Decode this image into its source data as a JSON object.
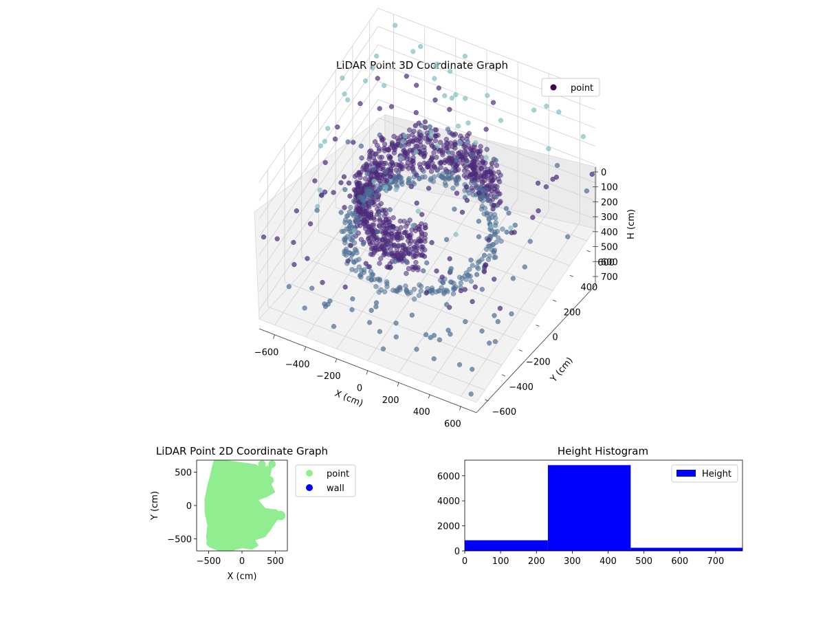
{
  "chart_data": [
    {
      "type": "scatter3d",
      "title": "LiDAR Point 3D Coordinate Graph",
      "xlabel": "X (cm)",
      "ylabel": "Y (cm)",
      "zlabel": "H (cm)",
      "xticks": [
        "−600",
        "−400",
        "−200",
        "0",
        "200",
        "400",
        "600"
      ],
      "yticks": [
        "−600",
        "−400",
        "−200",
        "0",
        "200",
        "400",
        "600"
      ],
      "zticks": [
        "0",
        "100",
        "200",
        "300",
        "400",
        "500",
        "600",
        "700"
      ],
      "xlim": [
        -700,
        700
      ],
      "ylim": [
        -700,
        700
      ],
      "zlim": [
        0,
        750
      ],
      "zaxis_inverted": true,
      "grid": true,
      "legend": {
        "position": "top-right",
        "entries": [
          "point"
        ]
      },
      "colormap": "viridis",
      "series": [
        {
          "name": "point",
          "color": "#440154",
          "structure": "partial cylindrical wall around origin, radius ~250-450 cm, heights 230-460 cm, plus scattered points",
          "points_sample": [
            [
              -450,
              0,
              300
            ],
            [
              -300,
              300,
              320
            ],
            [
              0,
              450,
              350
            ],
            [
              300,
              300,
              330
            ],
            [
              450,
              0,
              340
            ],
            [
              300,
              -300,
              360
            ],
            [
              0,
              -450,
              380
            ],
            [
              -300,
              -300,
              300
            ],
            [
              500,
              500,
              150
            ],
            [
              600,
              550,
              100
            ],
            [
              -600,
              -500,
              700
            ],
            [
              650,
              -600,
              650
            ]
          ]
        }
      ]
    },
    {
      "type": "scatter",
      "title": "LiDAR Point 2D Coordinate Graph",
      "xlabel": "X (cm)",
      "ylabel": "Y (cm)",
      "xticks": [
        "−500",
        "0",
        "500"
      ],
      "yticks": [
        "−500",
        "0",
        "500"
      ],
      "xlim": [
        -680,
        680
      ],
      "ylim": [
        -680,
        680
      ],
      "legend": {
        "position": "outside-right",
        "entries": [
          "point",
          "wall"
        ]
      },
      "series": [
        {
          "name": "point",
          "color": "#90ee90",
          "region_outline": [
            [
              -420,
              680
            ],
            [
              -250,
              680
            ],
            [
              -100,
              660
            ],
            [
              50,
              640
            ],
            [
              200,
              620
            ],
            [
              300,
              560
            ],
            [
              380,
              600
            ],
            [
              450,
              560
            ],
            [
              420,
              430
            ],
            [
              450,
              300
            ],
            [
              500,
              200
            ],
            [
              380,
              130
            ],
            [
              250,
              80
            ],
            [
              350,
              -40
            ],
            [
              520,
              -60
            ],
            [
              600,
              -140
            ],
            [
              500,
              -260
            ],
            [
              420,
              -380
            ],
            [
              350,
              -470
            ],
            [
              200,
              -520
            ],
            [
              250,
              -600
            ],
            [
              150,
              -660
            ],
            [
              0,
              -640
            ],
            [
              -150,
              -680
            ],
            [
              -350,
              -680
            ],
            [
              -500,
              -620
            ],
            [
              -540,
              -480
            ],
            [
              -520,
              -300
            ],
            [
              -560,
              -100
            ],
            [
              -560,
              100
            ],
            [
              -520,
              300
            ],
            [
              -480,
              450
            ],
            [
              -450,
              580
            ]
          ]
        },
        {
          "name": "wall",
          "color": "#0000ff",
          "points": []
        }
      ]
    },
    {
      "type": "bar",
      "title": "Height Histogram",
      "xticks": [
        "0",
        "100",
        "200",
        "300",
        "400",
        "500",
        "600",
        "700"
      ],
      "yticks": [
        "0",
        "2000",
        "4000",
        "6000"
      ],
      "xlim": [
        0,
        775
      ],
      "ylim": [
        0,
        7250
      ],
      "legend": {
        "position": "top-right",
        "entries": [
          "Height"
        ]
      },
      "series": [
        {
          "name": "Height",
          "color": "#0000ff",
          "bins": [
            {
              "from": 0,
              "to": 232,
              "count": 850
            },
            {
              "from": 232,
              "to": 463,
              "count": 6850
            },
            {
              "from": 463,
              "to": 775,
              "count": 250
            }
          ]
        }
      ]
    }
  ]
}
